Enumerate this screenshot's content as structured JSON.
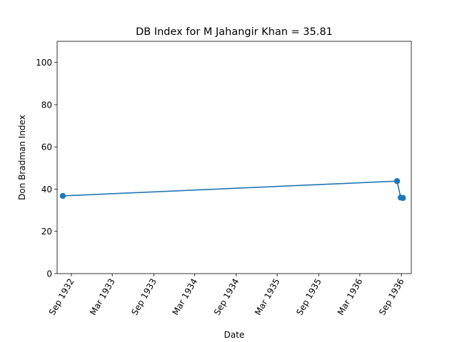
{
  "chart_data": {
    "type": "line",
    "title": "DB Index for M Jahangir Khan = 35.81",
    "xlabel": "Date",
    "ylabel": "Don Bradman Index",
    "ylim": [
      0,
      110
    ],
    "xlim": [
      "1932-06-30",
      "1936-10-15"
    ],
    "yticks": [
      0,
      20,
      40,
      60,
      80,
      100
    ],
    "xticks": [
      {
        "date": "1932-09-01",
        "label": "Sep 1932"
      },
      {
        "date": "1933-03-01",
        "label": "Mar 1933"
      },
      {
        "date": "1933-09-01",
        "label": "Sep 1933"
      },
      {
        "date": "1934-03-01",
        "label": "Mar 1934"
      },
      {
        "date": "1934-09-01",
        "label": "Sep 1934"
      },
      {
        "date": "1935-03-01",
        "label": "Mar 1935"
      },
      {
        "date": "1935-09-01",
        "label": "Sep 1935"
      },
      {
        "date": "1936-03-01",
        "label": "Mar 1936"
      },
      {
        "date": "1936-09-01",
        "label": "Sep 1936"
      }
    ],
    "series": [
      {
        "color": "#1f77b4",
        "points": [
          {
            "x": "1932-07-25",
            "y": 36.8
          },
          {
            "x": "1936-08-13",
            "y": 43.8
          },
          {
            "x": "1936-08-29",
            "y": 36.0
          },
          {
            "x": "1936-09-08",
            "y": 35.81
          }
        ]
      }
    ]
  }
}
